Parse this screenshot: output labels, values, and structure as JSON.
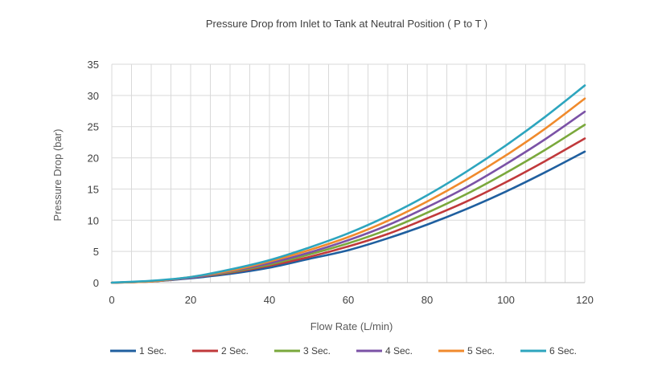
{
  "chart_data": {
    "type": "line",
    "title": "Pressure Drop from Inlet to Tank at Neutral Position ( P to T )",
    "xlabel": "Flow Rate (L/min)",
    "ylabel": "Pressure Drop (bar)",
    "xlim": [
      0,
      120
    ],
    "ylim": [
      0,
      35
    ],
    "xticks": [
      "0",
      "20",
      "40",
      "60",
      "80",
      "100",
      "120"
    ],
    "yticks": [
      "0",
      "5",
      "10",
      "15",
      "20",
      "25",
      "30",
      "35"
    ],
    "grid": true,
    "legend_position": "bottom",
    "x": [
      0,
      10,
      20,
      30,
      40,
      50,
      60,
      70,
      80,
      90,
      100,
      110,
      120
    ],
    "series": [
      {
        "name": "1 Sec.",
        "color": "#1f5f9f",
        "values": [
          0,
          0.2,
          0.7,
          1.4,
          2.4,
          3.8,
          5.2,
          7.1,
          9.3,
          11.8,
          14.6,
          17.7,
          21.0
        ]
      },
      {
        "name": "2 Sec.",
        "color": "#c0393b",
        "values": [
          0,
          0.2,
          0.8,
          1.6,
          2.7,
          4.1,
          5.8,
          7.8,
          10.3,
          13.0,
          16.1,
          19.5,
          23.1
        ]
      },
      {
        "name": "3 Sec.",
        "color": "#7aa83c",
        "values": [
          0,
          0.2,
          0.8,
          1.7,
          2.9,
          4.5,
          6.3,
          8.5,
          11.2,
          14.2,
          17.6,
          21.3,
          25.3
        ]
      },
      {
        "name": "4 Sec.",
        "color": "#7b52a6",
        "values": [
          0,
          0.2,
          0.8,
          1.8,
          3.1,
          4.8,
          6.8,
          9.2,
          12.1,
          15.3,
          19.0,
          23.0,
          27.4
        ]
      },
      {
        "name": "5 Sec.",
        "color": "#f08a2c",
        "values": [
          0,
          0.2,
          0.9,
          1.9,
          3.4,
          5.2,
          7.3,
          9.9,
          13.0,
          16.5,
          20.4,
          24.7,
          29.5
        ]
      },
      {
        "name": "6 Sec.",
        "color": "#2da5be",
        "values": [
          0,
          0.3,
          0.9,
          2.1,
          3.6,
          5.6,
          7.9,
          10.7,
          14.0,
          17.8,
          22.0,
          26.6,
          31.6
        ]
      }
    ]
  }
}
